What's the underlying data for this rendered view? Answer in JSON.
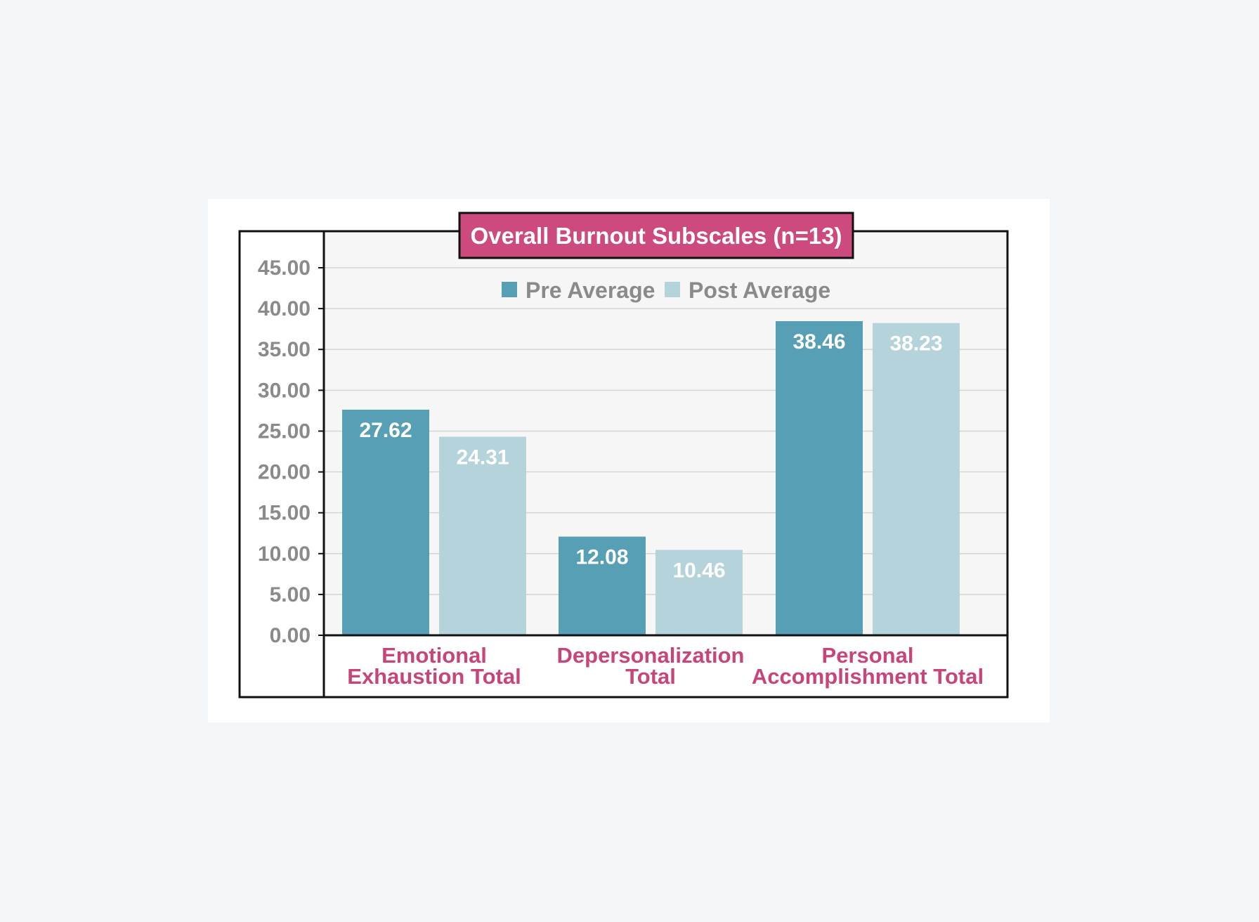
{
  "chart_data": {
    "type": "bar",
    "title": "Overall Burnout Subscales (n=13)",
    "categories": [
      [
        "Emotional",
        "Exhaustion Total"
      ],
      [
        "Depersonalization",
        "Total"
      ],
      [
        "Personal",
        "Accomplishment Total"
      ]
    ],
    "series": [
      {
        "name": "Pre Average",
        "values": [
          27.62,
          12.08,
          38.46
        ],
        "labels": [
          "27.62",
          "12.08",
          "38.46"
        ],
        "color": "#579fb5"
      },
      {
        "name": "Post Average",
        "values": [
          24.31,
          10.46,
          38.23
        ],
        "labels": [
          "24.31",
          "10.46",
          "38.23"
        ],
        "color": "#b5d3da"
      }
    ],
    "ylim": [
      0,
      45
    ],
    "yticks": [
      "0.00",
      "5.00",
      "10.00",
      "15.00",
      "20.00",
      "25.00",
      "30.00",
      "35.00",
      "40.00",
      "45.00"
    ],
    "grid": true,
    "legend_position": "top-center",
    "colors": {
      "title_bg": "#cc4a7e",
      "category_text": "#c8457c",
      "axis_text": "#8a8a8a",
      "plot_bg": "#f6f6f6"
    }
  }
}
